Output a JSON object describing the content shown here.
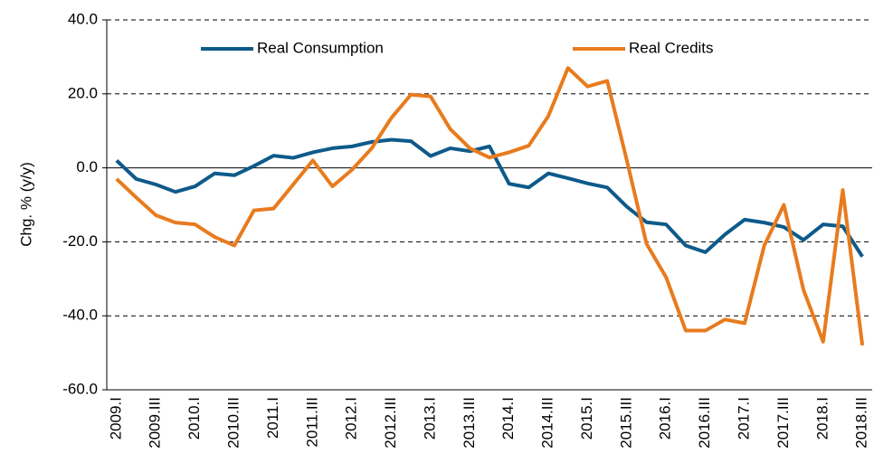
{
  "chart_data": {
    "type": "line",
    "y_label": "Chg. % (y/y)",
    "categories": [
      "2009.I",
      null,
      "2009.III",
      null,
      "2010.I",
      null,
      "2010.III",
      null,
      "2011.I",
      null,
      "2011.III",
      null,
      "2012.I",
      null,
      "2012.III",
      null,
      "2013.I",
      null,
      "2013.III",
      null,
      "2014.I",
      null,
      "2014.III",
      null,
      "2015.I",
      null,
      "2015.III",
      null,
      "2016.I",
      null,
      "2016.III",
      null,
      "2017.I",
      null,
      "2017.III",
      null,
      "2018.I",
      null,
      "2018.III"
    ],
    "series": [
      {
        "name": "Real Consumption",
        "color": "#0e5a8a",
        "values": [
          2,
          -3,
          -4.5,
          -6.5,
          -5,
          -1.5,
          -2,
          0.5,
          3.3,
          2.7,
          4.2,
          5.3,
          5.8,
          7,
          7.6,
          7.2,
          3.2,
          5.3,
          4.5,
          5.8,
          -4.3,
          -5.3,
          -1.5,
          -2.8,
          -4.2,
          -5.3,
          -10.5,
          -14.7,
          -15.3,
          -21,
          -22.8,
          -18,
          -14,
          -14.8,
          -16,
          -19.5,
          -15.3,
          -15.8,
          -24
        ]
      },
      {
        "name": "Real Credits",
        "color": "#e87b1e",
        "values": [
          -3,
          -8,
          -12.8,
          -14.8,
          -15.3,
          -18.7,
          -21,
          -11.5,
          -11,
          -4.5,
          2,
          -5,
          -0.5,
          5.3,
          13.5,
          19.8,
          19.3,
          10.5,
          5.3,
          2.8,
          4.2,
          6,
          14,
          27,
          22,
          23.5,
          2,
          -20.5,
          -29.6,
          -44,
          -44,
          -41,
          -42,
          -21,
          -10,
          -33,
          -47,
          -6,
          -48
        ]
      }
    ],
    "ylim": [
      -60,
      40
    ],
    "yticks": [
      {
        "value": -60,
        "label": "-60.0"
      },
      {
        "value": -40,
        "label": "-40.0"
      },
      {
        "value": -20,
        "label": "-20.0"
      },
      {
        "value": 0,
        "label": "0.0"
      },
      {
        "value": 20,
        "label": "20.0"
      },
      {
        "value": 40,
        "label": "40.0"
      }
    ],
    "grid": true,
    "legend": "top"
  }
}
